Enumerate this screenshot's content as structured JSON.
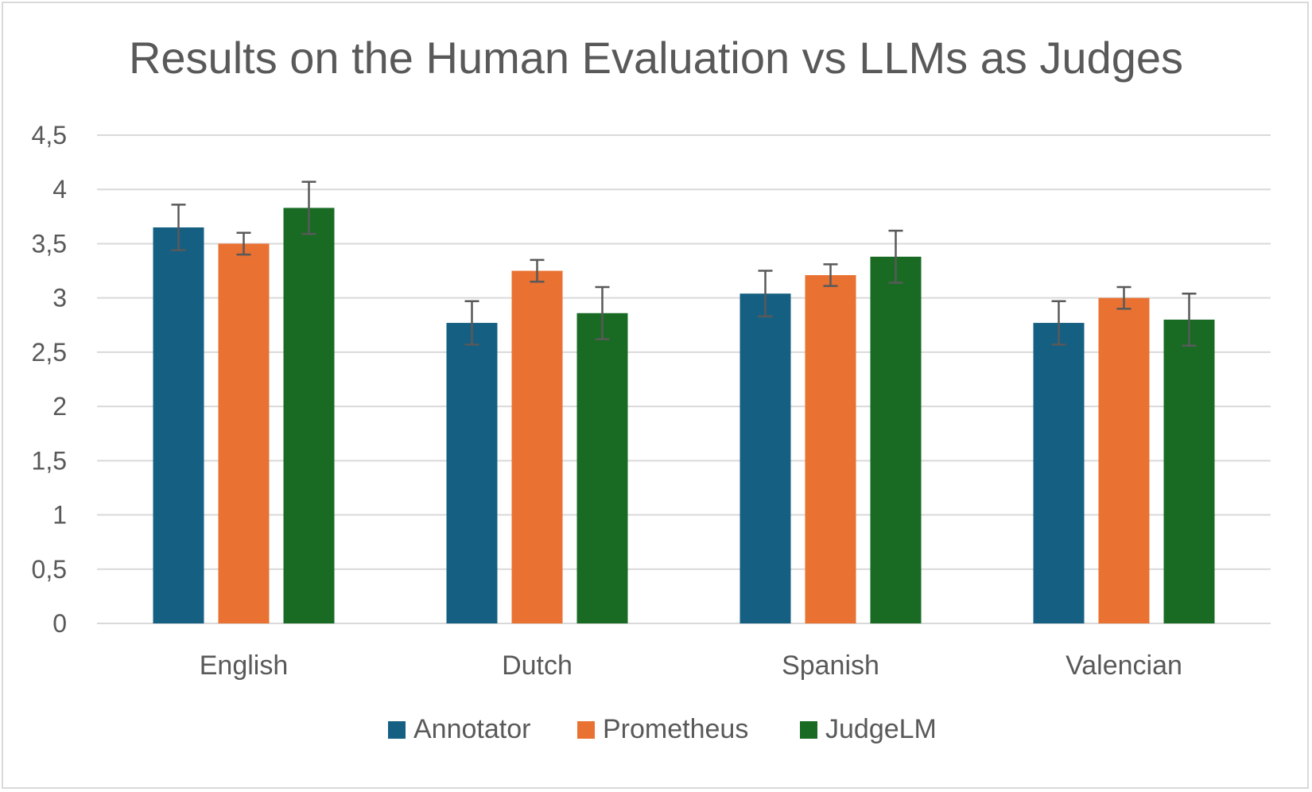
{
  "chart_data": {
    "type": "bar",
    "title": "Results on the Human Evaluation vs LLMs as Judges",
    "xlabel": "",
    "ylabel": "",
    "categories": [
      "English",
      "Dutch",
      "Spanish",
      "Valencian"
    ],
    "ylim": [
      0,
      4.5
    ],
    "yticks": [
      {
        "value": 0,
        "label": "0"
      },
      {
        "value": 0.5,
        "label": "0,5"
      },
      {
        "value": 1,
        "label": "1"
      },
      {
        "value": 1.5,
        "label": "1,5"
      },
      {
        "value": 2,
        "label": "2"
      },
      {
        "value": 2.5,
        "label": "2,5"
      },
      {
        "value": 3,
        "label": "3"
      },
      {
        "value": 3.5,
        "label": "3,5"
      },
      {
        "value": 4,
        "label": "4"
      },
      {
        "value": 4.5,
        "label": "4,5"
      }
    ],
    "grid": true,
    "legend_position": "bottom",
    "series": [
      {
        "name": "Annotator",
        "color": "#156082",
        "values": [
          3.65,
          2.77,
          3.04,
          2.77
        ],
        "error": [
          0.21,
          0.2,
          0.21,
          0.2
        ]
      },
      {
        "name": "Prometheus",
        "color": "#e97132",
        "values": [
          3.5,
          3.25,
          3.21,
          3.0
        ],
        "error": [
          0.1,
          0.1,
          0.1,
          0.1
        ]
      },
      {
        "name": "JudgeLM",
        "color": "#196b24",
        "values": [
          3.83,
          2.86,
          3.38,
          2.8
        ],
        "error": [
          0.24,
          0.24,
          0.24,
          0.24
        ]
      }
    ]
  }
}
